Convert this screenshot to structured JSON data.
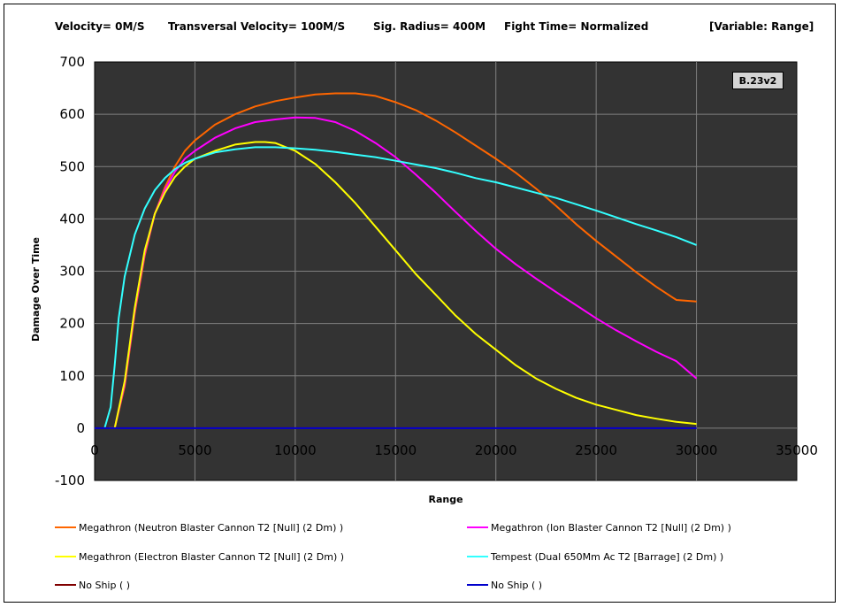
{
  "header": {
    "velocity": "Velocity= 0M/S",
    "transversal": "Transversal Velocity= 100M/S",
    "sig_radius": "Sig. Radius= 400M",
    "fight_time": "Fight Time= Normalized",
    "variable": "[Variable: Range]"
  },
  "version_badge": "B.23v2",
  "colors": {
    "plot_bg": "#333333",
    "grid": "#808080",
    "zero_line": "#0000cc"
  },
  "chart_data": {
    "type": "line",
    "xlabel": "Range",
    "ylabel": "Damage Over Time",
    "xlim": [
      0,
      35000
    ],
    "ylim": [
      -100,
      700
    ],
    "xticks": [
      "0",
      "5000",
      "10000",
      "15000",
      "20000",
      "25000",
      "30000",
      "35000"
    ],
    "yticks": [
      "700",
      "600",
      "500",
      "400",
      "300",
      "200",
      "100",
      "0",
      "-100"
    ],
    "grid": true,
    "legend_position": "bottom",
    "series": [
      {
        "name": "Megathron (Neutron Blaster Cannon T2 [Null] (2 Dm) )",
        "color": "#ff6600",
        "x": [
          700,
          1000,
          1500,
          2000,
          2500,
          3000,
          3500,
          4000,
          4500,
          5000,
          6000,
          7000,
          8000,
          9000,
          10000,
          11000,
          12000,
          13000,
          14000,
          15000,
          16000,
          17000,
          18000,
          19000,
          20000,
          21000,
          22000,
          23000,
          24000,
          25000,
          26000,
          27000,
          28000,
          29000,
          30000
        ],
        "values": [
          0,
          0,
          80,
          220,
          330,
          410,
          460,
          500,
          530,
          550,
          580,
          600,
          615,
          625,
          632,
          638,
          640,
          640,
          635,
          623,
          608,
          588,
          565,
          540,
          515,
          488,
          458,
          425,
          390,
          358,
          328,
          298,
          270,
          245,
          242
        ]
      },
      {
        "name": "Megathron (Ion Blaster Cannon T2 [Null] (2 Dm) )",
        "color": "#ff00ff",
        "x": [
          700,
          1000,
          1500,
          2000,
          2500,
          3000,
          3500,
          4000,
          4500,
          5000,
          6000,
          7000,
          8000,
          9000,
          10000,
          11000,
          12000,
          13000,
          14000,
          15000,
          16000,
          17000,
          18000,
          19000,
          20000,
          21000,
          22000,
          23000,
          24000,
          25000,
          26000,
          27000,
          28000,
          29000,
          30000
        ],
        "values": [
          0,
          0,
          85,
          225,
          335,
          410,
          455,
          490,
          515,
          530,
          555,
          573,
          585,
          590,
          594,
          593,
          585,
          568,
          545,
          518,
          485,
          450,
          413,
          377,
          343,
          313,
          286,
          260,
          235,
          210,
          187,
          166,
          146,
          128,
          95
        ]
      },
      {
        "name": "Megathron (Electron Blaster Cannon T2 [Null] (2 Dm) )",
        "color": "#ffff00",
        "x": [
          700,
          1000,
          1500,
          2000,
          2500,
          3000,
          3500,
          4000,
          4500,
          5000,
          6000,
          7000,
          8000,
          8500,
          9000,
          10000,
          11000,
          12000,
          13000,
          14000,
          15000,
          16000,
          17000,
          18000,
          19000,
          20000,
          21000,
          22000,
          23000,
          24000,
          25000,
          26000,
          27000,
          28000,
          29000,
          30000
        ],
        "values": [
          0,
          0,
          90,
          230,
          340,
          410,
          450,
          480,
          500,
          515,
          530,
          542,
          547,
          547,
          545,
          530,
          505,
          470,
          430,
          385,
          340,
          295,
          255,
          215,
          180,
          150,
          120,
          95,
          75,
          58,
          45,
          35,
          25,
          18,
          12,
          8
        ]
      },
      {
        "name": "Tempest (Dual 650Mm Ac T2 [Barrage] (2 Dm) )",
        "color": "#33ffff",
        "x": [
          500,
          800,
          1000,
          1200,
          1500,
          2000,
          2500,
          3000,
          3500,
          4000,
          4500,
          5000,
          6000,
          7000,
          8000,
          9000,
          10000,
          11000,
          12000,
          13000,
          14000,
          15000,
          16000,
          17000,
          18000,
          19000,
          20000,
          21000,
          22000,
          23000,
          24000,
          25000,
          26000,
          27000,
          28000,
          29000,
          30000
        ],
        "values": [
          0,
          40,
          120,
          210,
          290,
          370,
          420,
          455,
          478,
          495,
          507,
          515,
          527,
          533,
          537,
          537,
          535,
          532,
          528,
          523,
          518,
          511,
          504,
          497,
          488,
          478,
          470,
          460,
          450,
          440,
          428,
          416,
          403,
          390,
          378,
          365,
          350
        ]
      },
      {
        "name": "No Ship ( )",
        "color": "#800000",
        "x": [
          0,
          30000
        ],
        "values": [
          0,
          0
        ]
      },
      {
        "name": "No Ship ( )",
        "color": "#0000cc",
        "x": [
          0,
          30000
        ],
        "values": [
          0,
          0
        ]
      }
    ]
  }
}
